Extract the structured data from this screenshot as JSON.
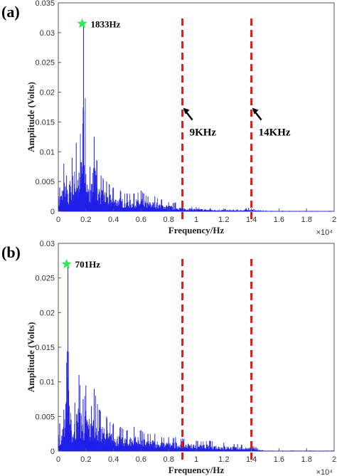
{
  "colors": {
    "spectrum": "#1f1fe8",
    "marker_lines": "#e01818",
    "star": "#2ee85a",
    "axes": "#555555"
  },
  "chart_data": [
    {
      "type": "line",
      "panel_label": "(a)",
      "xlabel": "Frequency/Hz",
      "ylabel": "Amplitude (Volts)",
      "x_multiplier": "×10⁴",
      "xlim": [
        0,
        20000
      ],
      "ylim": [
        0,
        0.035
      ],
      "x_ticks": [
        "0",
        "0.2",
        "0.4",
        "0.6",
        "0.8",
        "1",
        "1.2",
        "1.4",
        "1.6",
        "1.8",
        "2"
      ],
      "y_ticks": [
        "0",
        "0.005",
        "0.01",
        "0.015",
        "0.02",
        "0.025",
        "0.03",
        "0.035"
      ],
      "peak": {
        "x": 1833,
        "y": 0.0315,
        "label": "1833Hz"
      },
      "markers": [
        {
          "x": 9000,
          "label": "9KHz"
        },
        {
          "x": 14000,
          "label": "14KHz"
        }
      ],
      "series": [
        {
          "x": [
            100,
            400,
            600,
            800,
            1000,
            1300,
            1500,
            1833,
            2100,
            2300,
            2600,
            2800,
            3100,
            3500,
            4000,
            4500,
            5000,
            5500,
            6000,
            6500,
            7000,
            7500,
            8000,
            8500,
            9000,
            10000,
            11000,
            12000,
            13000,
            13800,
            14500,
            16000,
            18000,
            20000
          ],
          "y": [
            0.004,
            0.008,
            0.006,
            0.0045,
            0.009,
            0.0115,
            0.0065,
            0.0315,
            0.0045,
            0.0075,
            0.0125,
            0.0085,
            0.006,
            0.005,
            0.004,
            0.0035,
            0.003,
            0.003,
            0.0035,
            0.0025,
            0.0025,
            0.002,
            0.0015,
            0.0015,
            0.001,
            0.0007,
            0.0005,
            0.0004,
            0.0003,
            0.0006,
            0.0002,
            0.0001,
            0.0001,
            0.0001
          ]
        }
      ]
    },
    {
      "type": "line",
      "panel_label": "(b)",
      "xlabel": "Frequency/Hz",
      "ylabel": "Amplitude (Volts)",
      "x_multiplier": "×10⁴",
      "xlim": [
        0,
        20000
      ],
      "ylim": [
        0,
        0.03
      ],
      "x_ticks": [
        "0",
        "0.2",
        "0.4",
        "0.6",
        "0.8",
        "1",
        "1.2",
        "1.4",
        "1.6",
        "1.8",
        "2"
      ],
      "y_ticks": [
        "0",
        "0.005",
        "0.01",
        "0.015",
        "0.02",
        "0.025",
        "0.03"
      ],
      "peak": {
        "x": 701,
        "y": 0.027,
        "label": "701Hz"
      },
      "markers": [
        {
          "x": 9000,
          "label": ""
        },
        {
          "x": 14000,
          "label": ""
        }
      ],
      "series": [
        {
          "x": [
            100,
            400,
            701,
            900,
            1200,
            1500,
            1800,
            2000,
            2400,
            2600,
            3000,
            3500,
            4000,
            4500,
            5000,
            5500,
            6000,
            6500,
            7000,
            7500,
            8000,
            8500,
            9000,
            10000,
            11000,
            12000,
            13000,
            14000,
            15000,
            17000,
            20000
          ],
          "y": [
            0.004,
            0.006,
            0.027,
            0.0045,
            0.007,
            0.011,
            0.0075,
            0.0095,
            0.0065,
            0.009,
            0.006,
            0.005,
            0.004,
            0.0035,
            0.003,
            0.0035,
            0.003,
            0.0025,
            0.0025,
            0.002,
            0.002,
            0.002,
            0.0018,
            0.0015,
            0.0015,
            0.0012,
            0.001,
            0.0008,
            0.0001,
            0.0001,
            0.0001
          ]
        }
      ]
    }
  ]
}
